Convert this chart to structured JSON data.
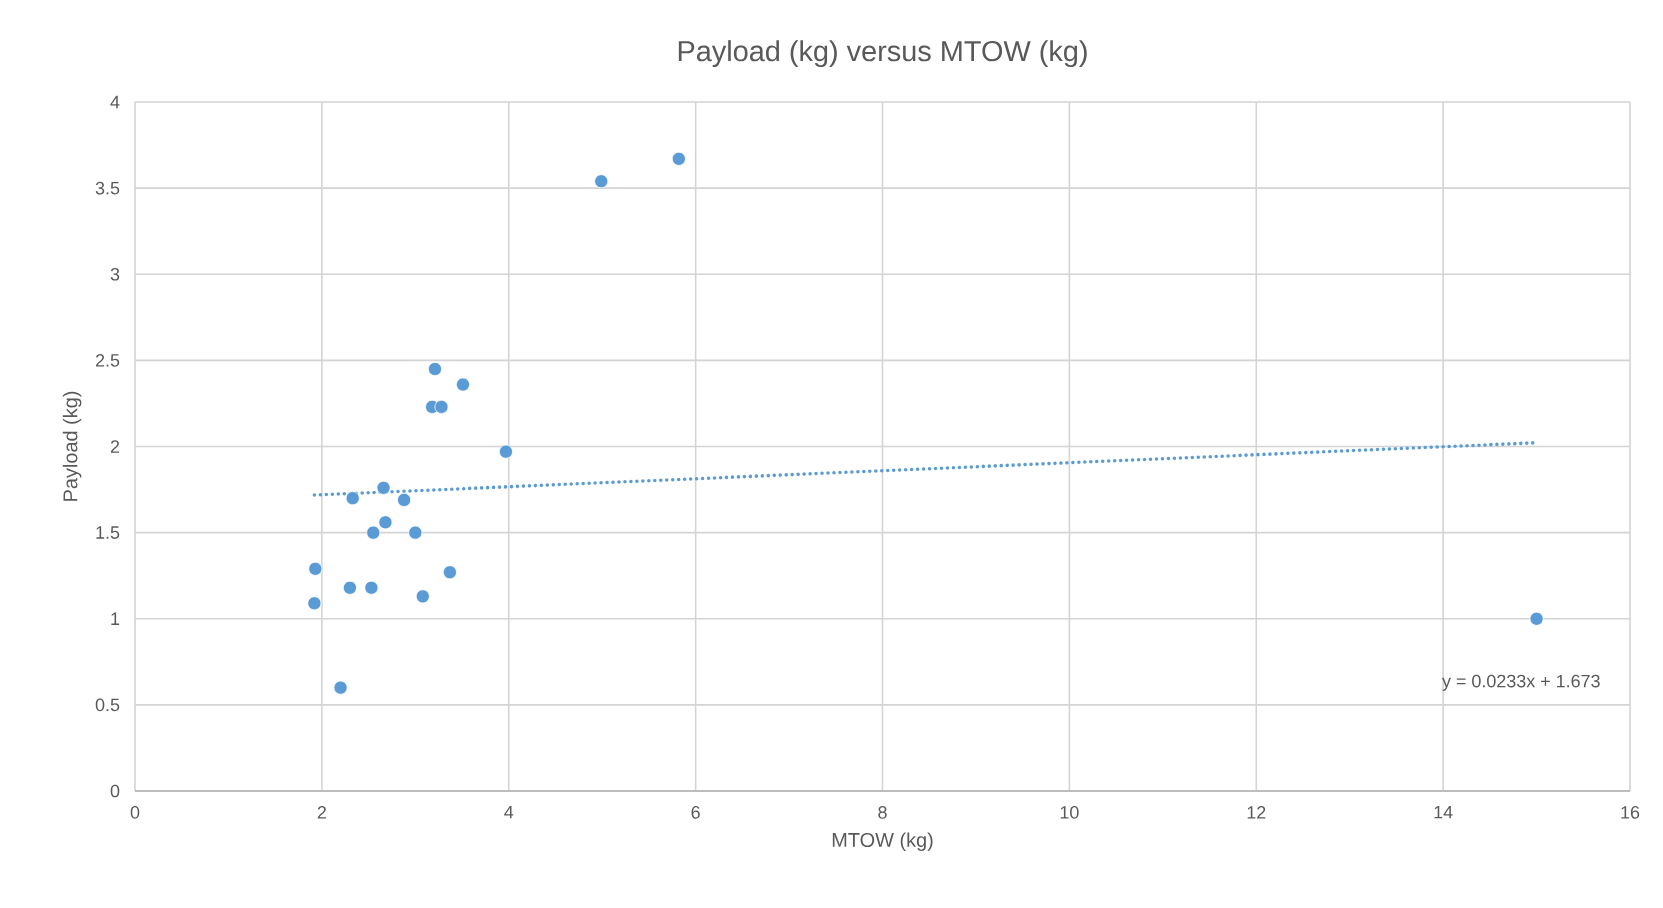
{
  "chart_data": {
    "type": "scatter",
    "title": "Payload (kg) versus MTOW (kg)",
    "xlabel": "MTOW (kg)",
    "ylabel": "Payload (kg)",
    "series": [
      {
        "color": "#5b9bd5",
        "marker": "circle",
        "x": [
          1.93,
          1.92,
          2.2,
          2.3,
          2.33,
          2.53,
          2.55,
          2.66,
          2.68,
          2.88,
          3.0,
          3.08,
          3.37,
          3.18,
          3.28,
          3.21,
          3.51,
          3.97,
          4.99,
          5.82,
          15.0
        ],
        "values": [
          1.29,
          1.09,
          0.6,
          1.18,
          1.7,
          1.18,
          1.5,
          1.76,
          1.56,
          1.69,
          1.5,
          1.13,
          1.27,
          2.23,
          2.23,
          2.45,
          2.36,
          1.97,
          3.54,
          3.67,
          1.0
        ]
      },
      {
        "type": "line",
        "color": "#5b9bd5",
        "marker": "none",
        "line_style": "dotted",
        "x": [
          1.92,
          15.0
        ],
        "values": [
          1.718,
          2.022
        ]
      }
    ],
    "annotations": [
      "y = 0.0233x + 1.673"
    ],
    "xlim": [
      0,
      16
    ],
    "xticks": [
      0,
      2,
      4,
      6,
      8,
      10,
      12,
      14,
      16
    ],
    "ylim": [
      0,
      4
    ],
    "yticks": [
      0,
      0.5,
      1,
      1.5,
      2,
      2.5,
      3,
      3.5,
      4
    ],
    "grid": true
  }
}
